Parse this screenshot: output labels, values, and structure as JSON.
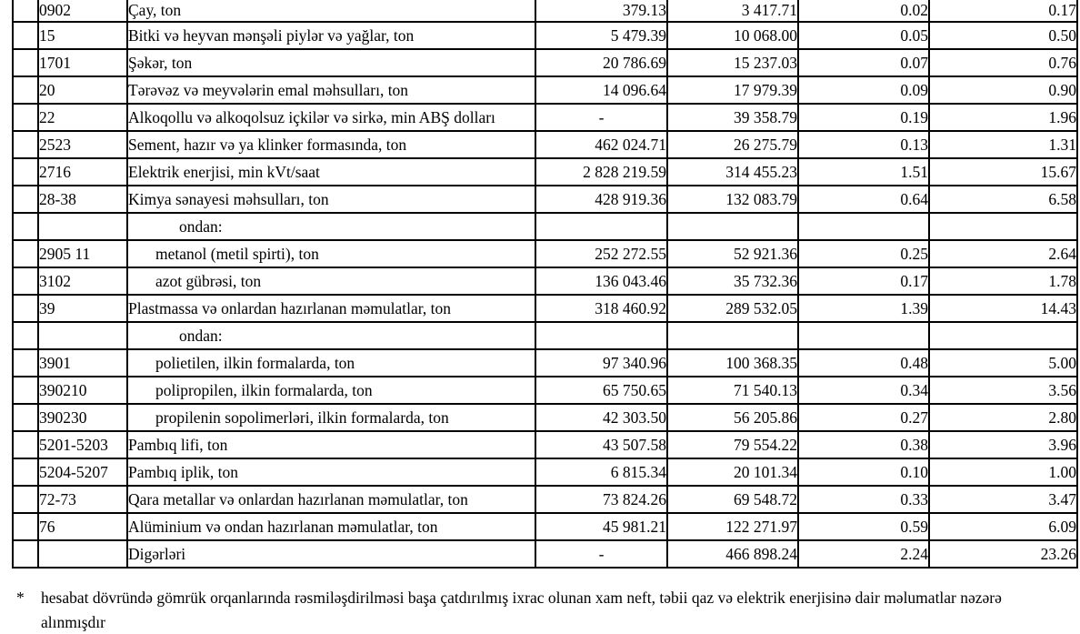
{
  "table": {
    "rows": [
      {
        "code": "0902",
        "name": "Çay, ton",
        "indent": "none",
        "v1": "379.13",
        "v2": "3 417.71",
        "v3": "0.02",
        "v4": "0.17"
      },
      {
        "code": "15",
        "name": "Bitki və heyvan mənşəli piylər və yağlar, ton",
        "indent": "none",
        "v1": "5 479.39",
        "v2": "10 068.00",
        "v3": "0.05",
        "v4": "0.50"
      },
      {
        "code": "1701",
        "name": "Şəkər, ton",
        "indent": "none",
        "v1": "20 786.69",
        "v2": "15 237.03",
        "v3": "0.07",
        "v4": "0.76"
      },
      {
        "code": "20",
        "name": "Tərəvəz və meyvələrin emal məhsulları, ton",
        "indent": "none",
        "v1": "14 096.64",
        "v2": "17 979.39",
        "v3": "0.09",
        "v4": "0.90"
      },
      {
        "code": "22",
        "name": "Alkoqollu və alkoqolsuz içkilər və sirkə, min ABŞ dolları",
        "indent": "none",
        "v1": "-",
        "v2": "39 358.79",
        "v3": "0.19",
        "v4": "1.96"
      },
      {
        "code": "2523",
        "name": "Sement, hazır və ya klinker formasında, ton",
        "indent": "none",
        "v1": "462 024.71",
        "v2": "26 275.79",
        "v3": "0.13",
        "v4": "1.31"
      },
      {
        "code": "2716",
        "name": "Elektrik enerjisi, min kVt/saat",
        "indent": "none",
        "v1": "2 828 219.59",
        "v2": "314 455.23",
        "v3": "1.51",
        "v4": "15.67"
      },
      {
        "code": "28-38",
        "name": "Kimya sənayesi məhsulları, ton",
        "indent": "none",
        "v1": "428 919.36",
        "v2": "132 083.79",
        "v3": "0.64",
        "v4": "6.58"
      },
      {
        "code": "",
        "name": "ondan:",
        "indent": "ondan",
        "v1": "",
        "v2": "",
        "v3": "",
        "v4": ""
      },
      {
        "code": "2905 11",
        "name": "metanol (metil spirti), ton",
        "indent": "sub",
        "v1": "252 272.55",
        "v2": "52 921.36",
        "v3": "0.25",
        "v4": "2.64"
      },
      {
        "code": "3102",
        "name": "azot gübrəsi, ton",
        "indent": "sub",
        "v1": "136 043.46",
        "v2": "35 732.36",
        "v3": "0.17",
        "v4": "1.78"
      },
      {
        "code": "39",
        "name": "Plastmassa və onlardan hazırlanan məmulatlar, ton",
        "indent": "none",
        "v1": "318 460.92",
        "v2": "289 532.05",
        "v3": "1.39",
        "v4": "14.43"
      },
      {
        "code": "",
        "name": "ondan:",
        "indent": "ondan",
        "v1": "",
        "v2": "",
        "v3": "",
        "v4": ""
      },
      {
        "code": "3901",
        "name": "polietilen, ilkin formalarda, ton",
        "indent": "sub",
        "v1": "97 340.96",
        "v2": "100 368.35",
        "v3": "0.48",
        "v4": "5.00"
      },
      {
        "code": "390210",
        "name": "polipropilen, ilkin formalarda, ton",
        "indent": "sub",
        "v1": "65 750.65",
        "v2": "71 540.13",
        "v3": "0.34",
        "v4": "3.56"
      },
      {
        "code": "390230",
        "name": "propilenin sopolimerləri, ilkin formalarda, ton",
        "indent": "sub",
        "v1": "42 303.50",
        "v2": "56 205.86",
        "v3": "0.27",
        "v4": "2.80"
      },
      {
        "code": "5201-5203",
        "name": "Pambıq lifi, ton",
        "indent": "none",
        "v1": "43 507.58",
        "v2": "79 554.22",
        "v3": "0.38",
        "v4": "3.96"
      },
      {
        "code": "5204-5207",
        "name": "Pambıq iplik, ton",
        "indent": "none",
        "v1": "6 815.34",
        "v2": "20 101.34",
        "v3": "0.10",
        "v4": "1.00"
      },
      {
        "code": "72-73",
        "name": "Qara metallar və onlardan hazırlanan məmulatlar, ton",
        "indent": "none",
        "v1": "73 824.26",
        "v2": "69 548.72",
        "v3": "0.33",
        "v4": "3.47"
      },
      {
        "code": "76",
        "name": "Alüminium və ondan hazırlanan məmulatlar, ton",
        "indent": "none",
        "v1": "45 981.21",
        "v2": "122 271.97",
        "v3": "0.59",
        "v4": "6.09"
      },
      {
        "code": "",
        "name": "Digərləri",
        "indent": "none",
        "v1": "-",
        "v2": "466 898.24",
        "v3": "2.24",
        "v4": "23.26"
      }
    ]
  },
  "footnote": {
    "marker": "*",
    "line1": "hesabat dövründə gömrük orqanlarında rəsmiləşdirilməsi başa çatdırılmış ixrac olunan xam neft, təbii qaz və elektrik enerjisinə dair məlumatlar nəzərə",
    "line2": "alınmışdır"
  }
}
